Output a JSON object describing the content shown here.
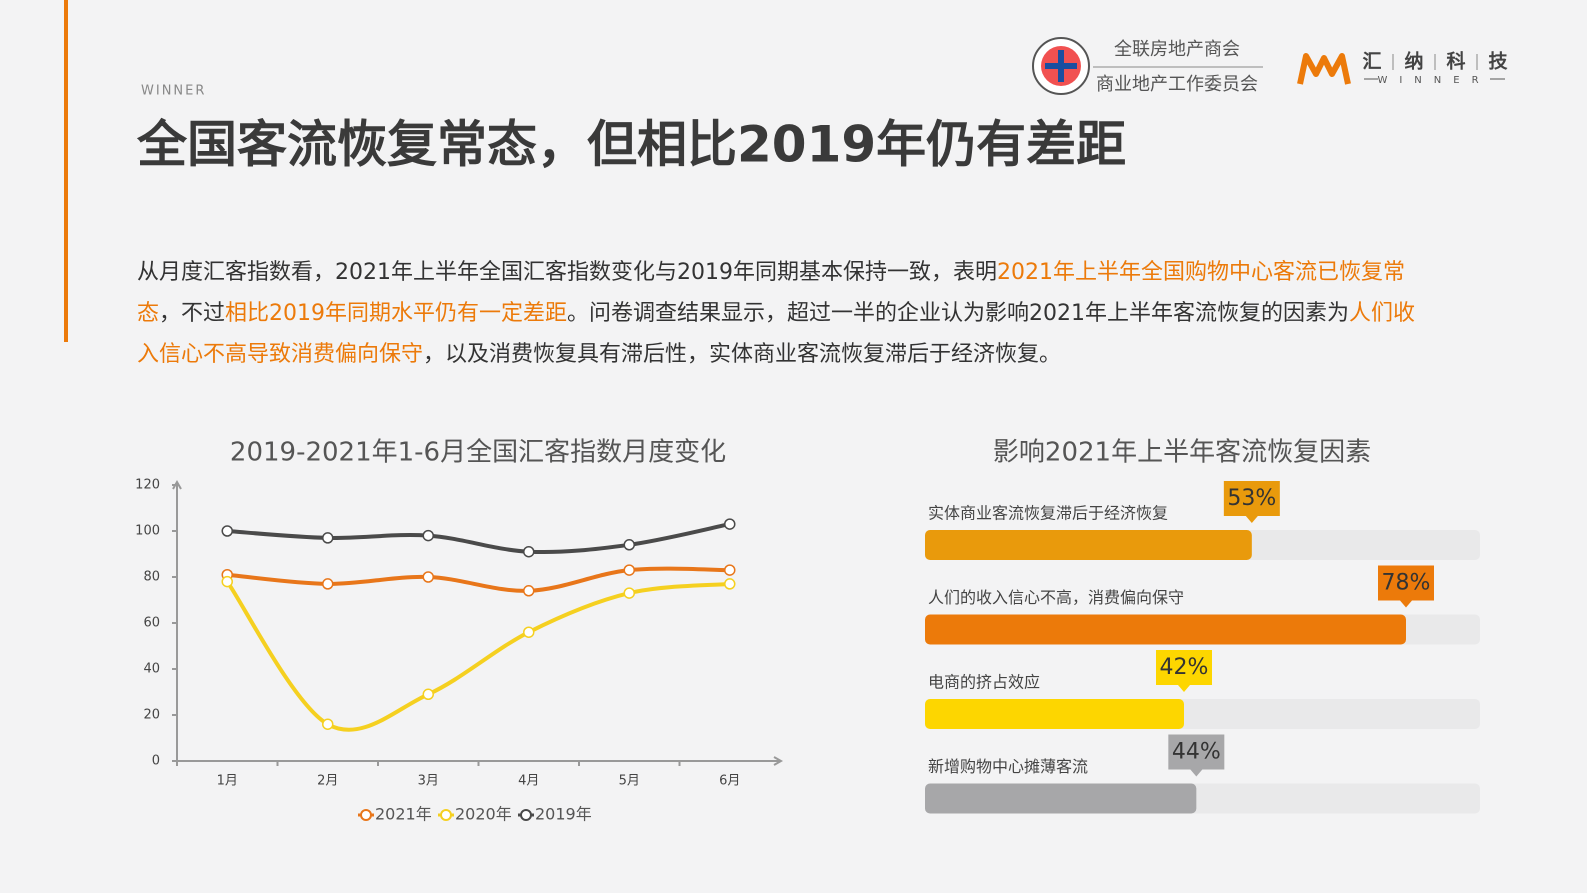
{
  "header": {
    "tag": "WINNER",
    "title": "全国客流恢复常态，但相比2019年仍有差距",
    "org_line1": "全联房地产商会",
    "org_line2": "商业地产工作委员会",
    "brand_chars": [
      "汇",
      "纳",
      "科",
      "技"
    ],
    "brand_sub": "WINNER"
  },
  "intro": [
    {
      "text": "从月度汇客指数看，2021年上半年全国汇客指数变化与2019年同期基本保持一致，表明"
    },
    {
      "text": "2021年上半年全国购物中心客流已恢复常态",
      "color": "#ec7a0a"
    },
    {
      "text": "，不过"
    },
    {
      "text": "相比2019年同期水平仍有一定差距",
      "color": "#ec7a0a"
    },
    {
      "text": "。问卷调查结果显示，超过一半的企业认为影响2021年上半年客流恢复的因素为"
    },
    {
      "text": "人们收入信心不高导致消费偏向保守",
      "color": "#ec7a0a"
    },
    {
      "text": "，以及消费恢复具有滞后性，实体商业客流恢复滞后于经济恢复。"
    }
  ],
  "chart_data": [
    {
      "type": "line",
      "title": "2019-2021年1-6月全国汇客指数月度变化",
      "categories": [
        "1月",
        "2月",
        "3月",
        "4月",
        "5月",
        "6月"
      ],
      "series": [
        {
          "name": "2021年",
          "color": "#e8761a",
          "values": [
            81,
            77,
            80,
            74,
            83,
            83
          ]
        },
        {
          "name": "2020年",
          "color": "#f5d020",
          "values": [
            78,
            16,
            29,
            56,
            73,
            77
          ]
        },
        {
          "name": "2019年",
          "color": "#4a4a4a",
          "values": [
            100,
            97,
            98,
            91,
            94,
            103
          ]
        }
      ],
      "ylim": [
        0,
        120
      ],
      "yticks": [
        0,
        20,
        40,
        60,
        80,
        100,
        120
      ]
    },
    {
      "type": "hbar",
      "title": "影响2021年上半年客流恢复因素",
      "categories": [
        "实体商业客流恢复滞后于经济恢复",
        "人们的收入信心不高，消费偏向保守",
        "电商的挤占效应",
        "新增购物中心摊薄客流"
      ],
      "values": [
        53,
        78,
        42,
        44
      ],
      "value_labels": [
        "53%",
        "78%",
        "42%",
        "44%"
      ],
      "colors": [
        "#e99a0c",
        "#ec7a0a",
        "#fdd600",
        "#a7a7a9"
      ],
      "xlim": [
        0,
        90
      ]
    }
  ]
}
